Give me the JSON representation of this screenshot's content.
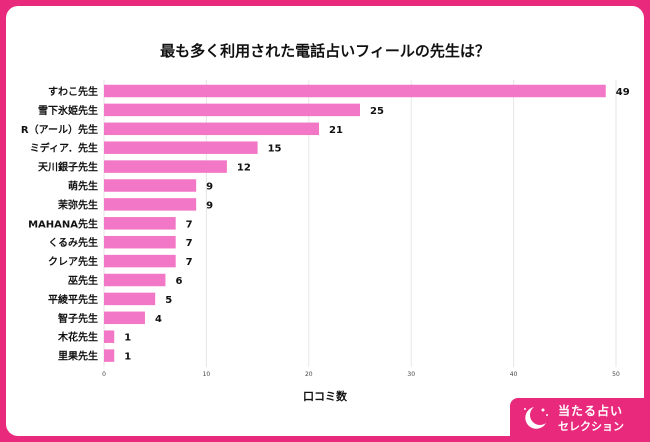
{
  "chart_data": {
    "type": "bar",
    "orientation": "horizontal",
    "title": "最も多く利用された電話占いフィールの先生は？",
    "xlabel": "口コミ数",
    "ylabel": "",
    "categories": [
      "すわこ先生",
      "雪下氷姫先生",
      "R（アール）先生",
      "ミディア．先生",
      "天川銀子先生",
      "萌先生",
      "茉弥先生",
      "MAHANA先生",
      "くるみ先生",
      "クレア先生",
      "巫先生",
      "平綾平先生",
      "智子先生",
      "木花先生",
      "里果先生"
    ],
    "values": [
      49,
      25,
      21,
      15,
      12,
      9,
      9,
      7,
      7,
      7,
      6,
      5,
      4,
      1,
      1
    ],
    "xlim": [
      0,
      50
    ],
    "xticks": [
      0,
      10,
      20,
      30,
      40,
      50
    ],
    "grid": true,
    "bar_color": "#f277c6",
    "data_labels": true
  },
  "brand": {
    "line1": "当たる占い",
    "line2": "セレクション",
    "color": "#e9297c"
  }
}
